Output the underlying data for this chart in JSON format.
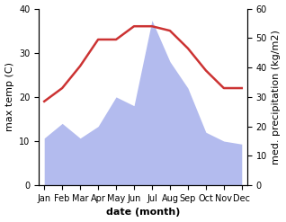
{
  "months": [
    "Jan",
    "Feb",
    "Mar",
    "Apr",
    "May",
    "Jun",
    "Jul",
    "Aug",
    "Sep",
    "Oct",
    "Nov",
    "Dec"
  ],
  "temperature": [
    19,
    22,
    27,
    33,
    33,
    36,
    36,
    35,
    31,
    26,
    22,
    22
  ],
  "precipitation": [
    16,
    21,
    16,
    20,
    30,
    27,
    56,
    42,
    33,
    18,
    15,
    14
  ],
  "temp_color": "#cc3333",
  "precip_fill_color": "#b3bbee",
  "ylabel_left": "max temp (C)",
  "ylabel_right": "med. precipitation (kg/m2)",
  "xlabel": "date (month)",
  "ylim_left": [
    0,
    40
  ],
  "ylim_right": [
    0,
    60
  ],
  "yticks_left": [
    0,
    10,
    20,
    30,
    40
  ],
  "yticks_right": [
    0,
    10,
    20,
    30,
    40,
    50,
    60
  ],
  "bg_color": "#ffffff",
  "temp_linewidth": 1.8,
  "xlabel_fontsize": 8,
  "ylabel_fontsize": 8,
  "tick_fontsize": 7
}
